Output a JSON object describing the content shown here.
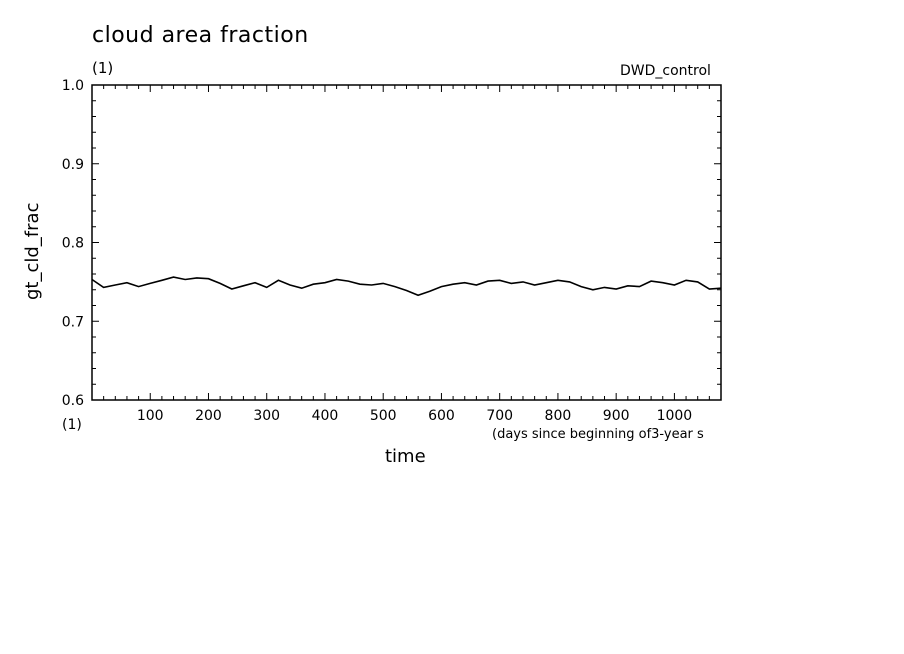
{
  "figure": {
    "title": "cloud area fraction",
    "title_unit": "(1)",
    "experiment": "DWD_control",
    "xlabel": "time",
    "x_unit": "(1)",
    "x_note": "(days since beginning of3-year s",
    "ylabel": "gt_cld_frac"
  },
  "chart_data": {
    "type": "line",
    "title": "cloud area fraction",
    "xlabel": "time",
    "ylabel": "gt_cld_frac",
    "xlim": [
      0,
      1080
    ],
    "ylim": [
      0.6,
      1.0
    ],
    "x_ticks": [
      100,
      200,
      300,
      400,
      500,
      600,
      700,
      800,
      900,
      1000
    ],
    "y_ticks": [
      "0.6",
      "0.7",
      "0.8",
      "0.9",
      "1.0"
    ],
    "grid": false,
    "series": [
      {
        "x": [
          0,
          20,
          40,
          60,
          80,
          100,
          120,
          140,
          160,
          180,
          200,
          220,
          240,
          260,
          280,
          300,
          320,
          340,
          360,
          380,
          400,
          420,
          440,
          460,
          480,
          500,
          520,
          540,
          560,
          580,
          600,
          620,
          640,
          660,
          680,
          700,
          720,
          740,
          760,
          780,
          800,
          820,
          840,
          860,
          880,
          900,
          920,
          940,
          960,
          980,
          1000,
          1020,
          1040,
          1060,
          1080
        ],
        "values": [
          0.753,
          0.743,
          0.746,
          0.749,
          0.744,
          0.748,
          0.752,
          0.756,
          0.753,
          0.755,
          0.754,
          0.748,
          0.741,
          0.745,
          0.749,
          0.743,
          0.752,
          0.746,
          0.742,
          0.747,
          0.749,
          0.753,
          0.751,
          0.747,
          0.746,
          0.748,
          0.744,
          0.739,
          0.733,
          0.738,
          0.744,
          0.747,
          0.749,
          0.746,
          0.751,
          0.752,
          0.748,
          0.75,
          0.746,
          0.749,
          0.752,
          0.75,
          0.744,
          0.74,
          0.743,
          0.741,
          0.745,
          0.744,
          0.751,
          0.749,
          0.746,
          0.752,
          0.75,
          0.741,
          0.742
        ]
      }
    ]
  }
}
